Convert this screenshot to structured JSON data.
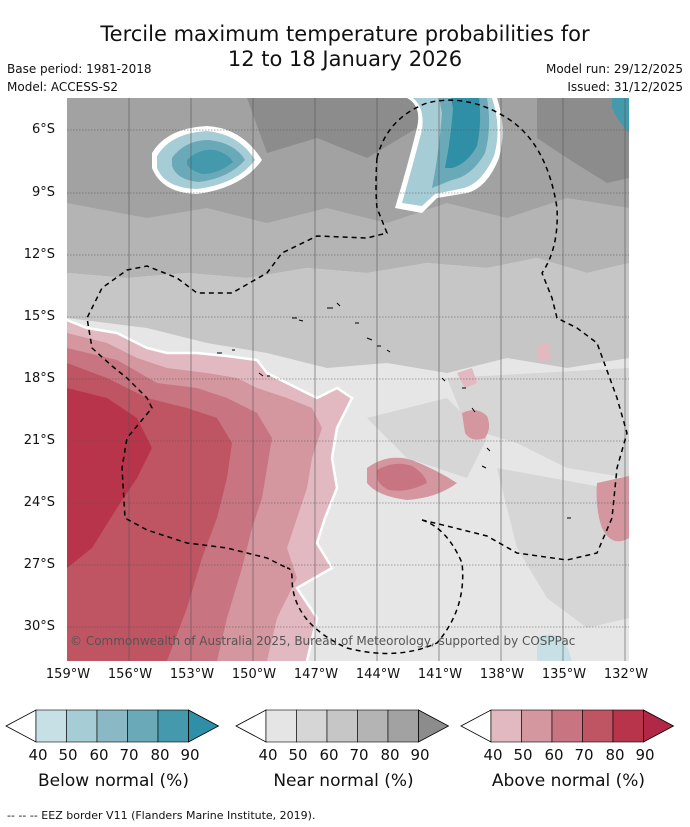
{
  "title_line1": "Tercile maximum temperature probabilities for",
  "title_line2": "12 to 18 January 2026",
  "base_period": "Base period: 1981-2018",
  "model": "Model: ACCESS-S2",
  "model_run": "Model run: 29/12/2025",
  "issued": "Issued: 31/12/2025",
  "copyright": "© Commonwealth of Australia 2025, Bureau of Meteorology, supported by COSPPac",
  "lat_labels": [
    "6°S",
    "9°S",
    "12°S",
    "15°S",
    "18°S",
    "21°S",
    "24°S",
    "27°S",
    "30°S"
  ],
  "lon_labels": [
    "159°W",
    "156°W",
    "153°W",
    "150°W",
    "147°W",
    "144°W",
    "141°W",
    "138°W",
    "135°W",
    "132°W"
  ],
  "colorbars": [
    {
      "label": "Below normal (%)",
      "ticks": [
        "40",
        "50",
        "60",
        "70",
        "80",
        "90"
      ],
      "colors": [
        "#ffffff",
        "#c7e0e6",
        "#a6ccd5",
        "#8ab9c5",
        "#6aa9b8",
        "#449aac",
        "#2e8fa6"
      ]
    },
    {
      "label": "Near normal (%)",
      "ticks": [
        "40",
        "50",
        "60",
        "70",
        "80",
        "90"
      ],
      "colors": [
        "#ffffff",
        "#e5e5e5",
        "#d6d6d6",
        "#c6c6c6",
        "#b4b4b4",
        "#a2a2a2",
        "#8c8c8c"
      ]
    },
    {
      "label": "Above normal (%)",
      "ticks": [
        "40",
        "50",
        "60",
        "70",
        "80",
        "90"
      ],
      "colors": [
        "#ffffff",
        "#e2b9c1",
        "#d4969f",
        "#c97481",
        "#bf5563",
        "#b8344a",
        "#b02845"
      ]
    }
  ],
  "footer": "--  --  -- EEZ border V11 (Flanders Marine Institute, 2019)."
}
